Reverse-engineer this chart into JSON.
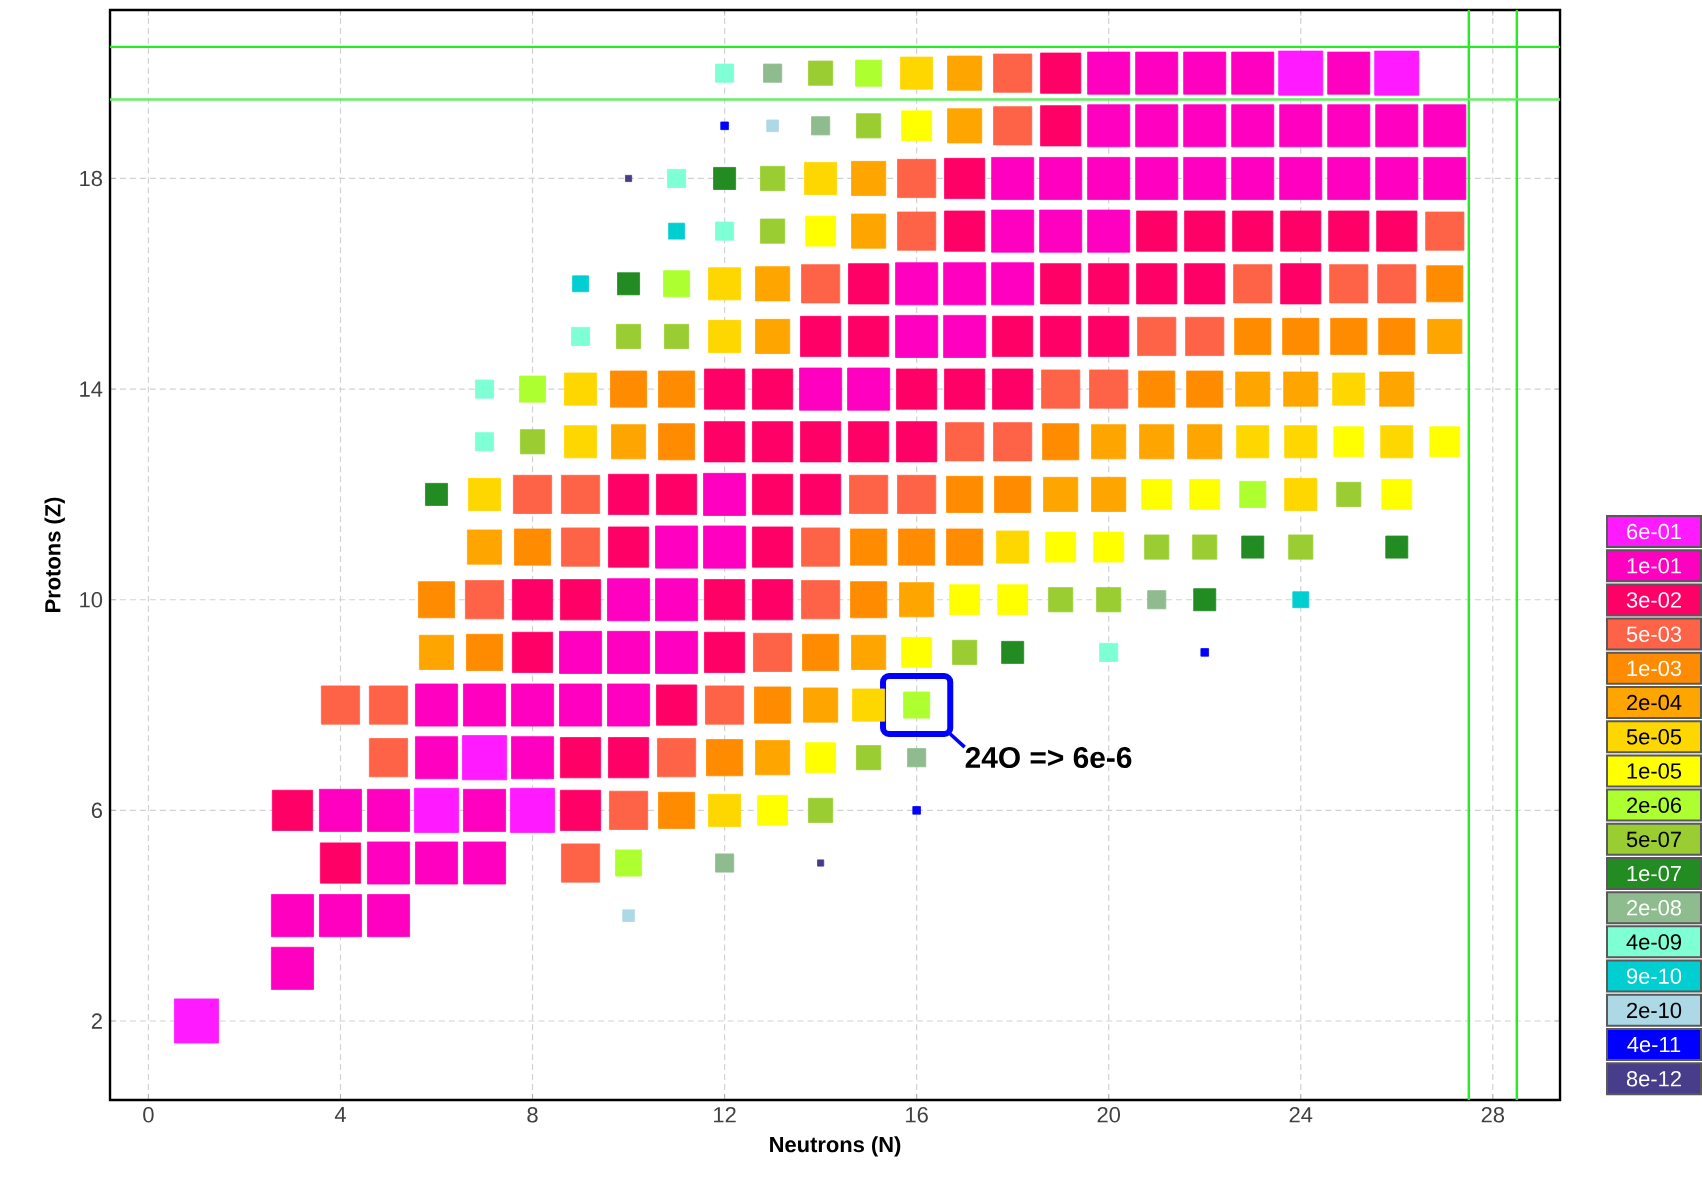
{
  "chart_data": {
    "type": "bubble",
    "xlabel": "Neutrons (N)",
    "ylabel": "Protons (Z)",
    "marker": "square",
    "grid": true,
    "legend": "right",
    "xlim": [
      -0.8,
      29.4
    ],
    "ylim": [
      0.5,
      21.2
    ],
    "xticks": [
      0,
      4,
      8,
      12,
      16,
      20,
      24,
      28
    ],
    "yticks": [
      2,
      6,
      10,
      14,
      18
    ],
    "series": [
      {
        "name": "6e-01",
        "color": "#ff1aff",
        "x": [
          24,
          26,
          7,
          6,
          8,
          1
        ],
        "values": [
          20,
          20,
          7,
          6,
          6,
          2
        ],
        "sizes": [
          1,
          1,
          1,
          1,
          1,
          1
        ]
      },
      {
        "name": "1e-01",
        "color": "#ff00c0",
        "x": [
          20,
          21,
          22,
          23,
          25,
          20,
          21,
          22,
          23,
          24,
          25,
          26,
          27,
          18,
          19,
          20,
          21,
          22,
          23,
          24,
          25,
          26,
          27,
          18,
          19,
          20,
          16,
          17,
          18,
          16,
          17,
          14,
          15,
          12,
          11,
          12,
          10,
          11,
          9,
          10,
          11,
          6,
          7,
          8,
          9,
          10,
          6,
          8,
          4,
          5,
          7,
          5,
          6,
          7,
          3,
          4,
          5,
          3
        ],
        "values": [
          20,
          20,
          20,
          20,
          20,
          19,
          19,
          19,
          19,
          19,
          19,
          19,
          19,
          18,
          18,
          18,
          18,
          18,
          18,
          18,
          18,
          18,
          18,
          17,
          17,
          17,
          16,
          16,
          16,
          15,
          15,
          14,
          14,
          12,
          11,
          11,
          10,
          10,
          9,
          9,
          9,
          8,
          8,
          8,
          8,
          8,
          7,
          7,
          6,
          6,
          6,
          5,
          5,
          5,
          4,
          4,
          4,
          3
        ],
        "sizes": [
          0.91,
          0.91,
          0.91,
          0.91,
          0.91,
          0.91,
          0.91,
          0.91,
          0.91,
          0.91,
          0.91,
          0.91,
          0.91,
          0.91,
          0.91,
          0.91,
          0.91,
          0.91,
          0.91,
          0.91,
          0.91,
          0.91,
          0.91,
          0.91,
          0.91,
          0.91,
          0.91,
          0.91,
          0.91,
          0.91,
          0.91,
          0.91,
          0.91,
          0.91,
          0.91,
          0.91,
          0.91,
          0.91,
          0.91,
          0.91,
          0.91,
          0.91,
          0.91,
          0.91,
          0.91,
          0.91,
          0.91,
          0.91,
          0.91,
          0.91,
          0.91,
          0.91,
          0.91,
          0.91,
          0.91,
          0.91,
          0.91,
          0.91
        ]
      },
      {
        "name": "3e-02",
        "color": "#ff0066",
        "x": [
          19,
          19,
          17,
          17,
          21,
          22,
          23,
          24,
          25,
          26,
          15,
          19,
          20,
          21,
          22,
          24,
          14,
          15,
          18,
          19,
          20,
          12,
          13,
          16,
          17,
          18,
          12,
          13,
          14,
          15,
          16,
          10,
          11,
          13,
          14,
          10,
          13,
          8,
          9,
          12,
          13,
          8,
          12,
          11,
          9,
          10,
          3,
          9,
          4
        ],
        "values": [
          20,
          19,
          18,
          17,
          17,
          17,
          17,
          17,
          17,
          17,
          16,
          16,
          16,
          16,
          16,
          16,
          15,
          15,
          15,
          15,
          15,
          14,
          14,
          14,
          14,
          14,
          13,
          13,
          13,
          13,
          13,
          12,
          12,
          12,
          12,
          11,
          11,
          10,
          10,
          10,
          10,
          9,
          9,
          8,
          7,
          7,
          6,
          6,
          5
        ],
        "sizes": [
          0.83,
          0.83,
          0.83,
          0.83,
          0.83,
          0.83,
          0.83,
          0.83,
          0.83,
          0.83,
          0.83,
          0.83,
          0.83,
          0.83,
          0.83,
          0.83,
          0.83,
          0.83,
          0.83,
          0.83,
          0.83,
          0.83,
          0.83,
          0.83,
          0.83,
          0.83,
          0.83,
          0.83,
          0.83,
          0.83,
          0.83,
          0.83,
          0.83,
          0.83,
          0.83,
          0.83,
          0.83,
          0.83,
          0.83,
          0.83,
          0.83,
          0.83,
          0.83,
          0.83,
          0.83,
          0.83,
          0.83,
          0.83,
          0.83
        ]
      },
      {
        "name": "5e-03",
        "color": "#ff6347",
        "x": [
          18,
          18,
          16,
          16,
          27,
          14,
          23,
          25,
          26,
          21,
          22,
          19,
          20,
          17,
          18,
          8,
          9,
          15,
          16,
          9,
          14,
          7,
          14,
          13,
          4,
          5,
          12,
          5,
          11,
          10,
          9
        ],
        "values": [
          20,
          19,
          18,
          17,
          17,
          16,
          16,
          16,
          16,
          15,
          15,
          14,
          14,
          13,
          13,
          12,
          12,
          12,
          12,
          11,
          11,
          10,
          10,
          9,
          8,
          8,
          8,
          7,
          7,
          6,
          5
        ],
        "sizes": [
          0.75,
          0.75,
          0.75,
          0.75,
          0.75,
          0.75,
          0.75,
          0.75,
          0.75,
          0.75,
          0.75,
          0.75,
          0.75,
          0.75,
          0.75,
          0.75,
          0.75,
          0.75,
          0.75,
          0.75,
          0.75,
          0.75,
          0.75,
          0.75,
          0.75,
          0.75,
          0.75,
          0.75,
          0.75,
          0.75,
          0.75
        ]
      },
      {
        "name": "1e-03",
        "color": "#ff8c00",
        "x": [
          27,
          23,
          24,
          25,
          26,
          10,
          11,
          21,
          22,
          11,
          19,
          17,
          18,
          8,
          15,
          16,
          17,
          6,
          15,
          7,
          14,
          13,
          12,
          11
        ],
        "values": [
          16,
          15,
          15,
          15,
          15,
          14,
          14,
          14,
          14,
          13,
          13,
          12,
          12,
          11,
          11,
          11,
          11,
          10,
          10,
          9,
          9,
          8,
          7,
          6
        ],
        "sizes": [
          0.67,
          0.67,
          0.67,
          0.67,
          0.67,
          0.67,
          0.67,
          0.67,
          0.67,
          0.67,
          0.67,
          0.67,
          0.67,
          0.67,
          0.67,
          0.67,
          0.67,
          0.67,
          0.67,
          0.67,
          0.67,
          0.67,
          0.67,
          0.67
        ]
      },
      {
        "name": "2e-04",
        "color": "#ffa500",
        "x": [
          17,
          17,
          15,
          15,
          13,
          13,
          27,
          23,
          24,
          26,
          10,
          20,
          21,
          22,
          19,
          20,
          7,
          16,
          6,
          15,
          14,
          13
        ],
        "values": [
          20,
          19,
          18,
          17,
          16,
          15,
          15,
          14,
          14,
          14,
          13,
          13,
          13,
          13,
          12,
          12,
          11,
          10,
          9,
          9,
          8,
          7
        ],
        "sizes": [
          0.6,
          0.6,
          0.6,
          0.6,
          0.6,
          0.6,
          0.6,
          0.6,
          0.6,
          0.6,
          0.6,
          0.6,
          0.6,
          0.6,
          0.6,
          0.6,
          0.6,
          0.6,
          0.6,
          0.6,
          0.6,
          0.6
        ]
      },
      {
        "name": "5e-05",
        "color": "#ffd700",
        "x": [
          16,
          14,
          12,
          12,
          9,
          25,
          9,
          23,
          24,
          26,
          7,
          24,
          18,
          15,
          12
        ],
        "values": [
          20,
          18,
          16,
          15,
          14,
          14,
          13,
          13,
          13,
          13,
          12,
          12,
          11,
          8,
          6
        ],
        "sizes": [
          0.53,
          0.53,
          0.53,
          0.53,
          0.53,
          0.53,
          0.53,
          0.53,
          0.53,
          0.53,
          0.53,
          0.53,
          0.53,
          0.53,
          0.53
        ]
      },
      {
        "name": "1e-05",
        "color": "#ffff00",
        "x": [
          16,
          14,
          25,
          27,
          21,
          22,
          26,
          19,
          20,
          17,
          18,
          16,
          14,
          13
        ],
        "values": [
          19,
          17,
          13,
          13,
          12,
          12,
          12,
          11,
          11,
          10,
          10,
          9,
          7,
          6
        ],
        "sizes": [
          0.46,
          0.46,
          0.46,
          0.46,
          0.46,
          0.46,
          0.46,
          0.46,
          0.46,
          0.46,
          0.46,
          0.46,
          0.46,
          0.46
        ]
      },
      {
        "name": "2e-06",
        "color": "#adff2f",
        "x": [
          15,
          11,
          8,
          23,
          16,
          10
        ],
        "values": [
          20,
          16,
          14,
          12,
          8,
          5
        ],
        "sizes": [
          0.35,
          0.35,
          0.35,
          0.35,
          0.35,
          0.35
        ]
      },
      {
        "name": "5e-07",
        "color": "#9acd32",
        "x": [
          14,
          15,
          13,
          13,
          10,
          11,
          8,
          25,
          21,
          22,
          24,
          19,
          20,
          17,
          15,
          14
        ],
        "values": [
          20,
          19,
          18,
          17,
          15,
          15,
          13,
          12,
          11,
          11,
          11,
          10,
          10,
          9,
          7,
          6
        ],
        "sizes": [
          0.3,
          0.3,
          0.3,
          0.3,
          0.3,
          0.3,
          0.3,
          0.3,
          0.3,
          0.3,
          0.3,
          0.3,
          0.3,
          0.3,
          0.3,
          0.3
        ]
      },
      {
        "name": "1e-07",
        "color": "#228b22",
        "x": [
          12,
          10,
          6,
          23,
          26,
          22,
          18
        ],
        "values": [
          18,
          16,
          12,
          11,
          11,
          10,
          9
        ],
        "sizes": [
          0.25,
          0.25,
          0.25,
          0.25,
          0.25,
          0.25,
          0.25
        ]
      },
      {
        "name": "2e-08",
        "color": "#8fbc8f",
        "x": [
          13,
          14,
          21,
          16,
          12
        ],
        "values": [
          20,
          19,
          10,
          7,
          5
        ],
        "sizes": [
          0.17,
          0.17,
          0.17,
          0.17,
          0.17
        ]
      },
      {
        "name": "4e-09",
        "color": "#7fffd4",
        "x": [
          12,
          11,
          12,
          9,
          7,
          7,
          20
        ],
        "values": [
          20,
          18,
          17,
          15,
          14,
          13,
          9
        ],
        "sizes": [
          0.17,
          0.17,
          0.17,
          0.17,
          0.17,
          0.17,
          0.17
        ]
      },
      {
        "name": "9e-10",
        "color": "#00ced1",
        "x": [
          11,
          9,
          24
        ],
        "values": [
          17,
          16,
          10
        ],
        "sizes": [
          0.13,
          0.13,
          0.13
        ]
      },
      {
        "name": "2e-10",
        "color": "#add8e6",
        "x": [
          13,
          10
        ],
        "values": [
          19,
          4
        ],
        "sizes": [
          0.07,
          0.07
        ]
      },
      {
        "name": "4e-11",
        "color": "#0000ff",
        "x": [
          12,
          22,
          16
        ],
        "values": [
          19,
          9,
          6
        ],
        "sizes": [
          0.03,
          0.03,
          0.03
        ]
      },
      {
        "name": "8e-12",
        "color": "#483d8b",
        "x": [
          10,
          14
        ],
        "values": [
          18,
          5
        ],
        "sizes": [
          0.02,
          0.02
        ]
      }
    ],
    "ref_lines": [
      {
        "axis": "x",
        "value": 27.5,
        "color": "#22ee22"
      },
      {
        "axis": "x",
        "value": 28.5,
        "color": "#22ee22"
      },
      {
        "axis": "y",
        "value": 19.5,
        "color": "#66ee66"
      },
      {
        "axis": "y",
        "value": 20.5,
        "color": "#22ee22"
      }
    ],
    "annotations": [
      {
        "text": "24O => 6e-6",
        "x": 16,
        "y": 8
      }
    ]
  }
}
